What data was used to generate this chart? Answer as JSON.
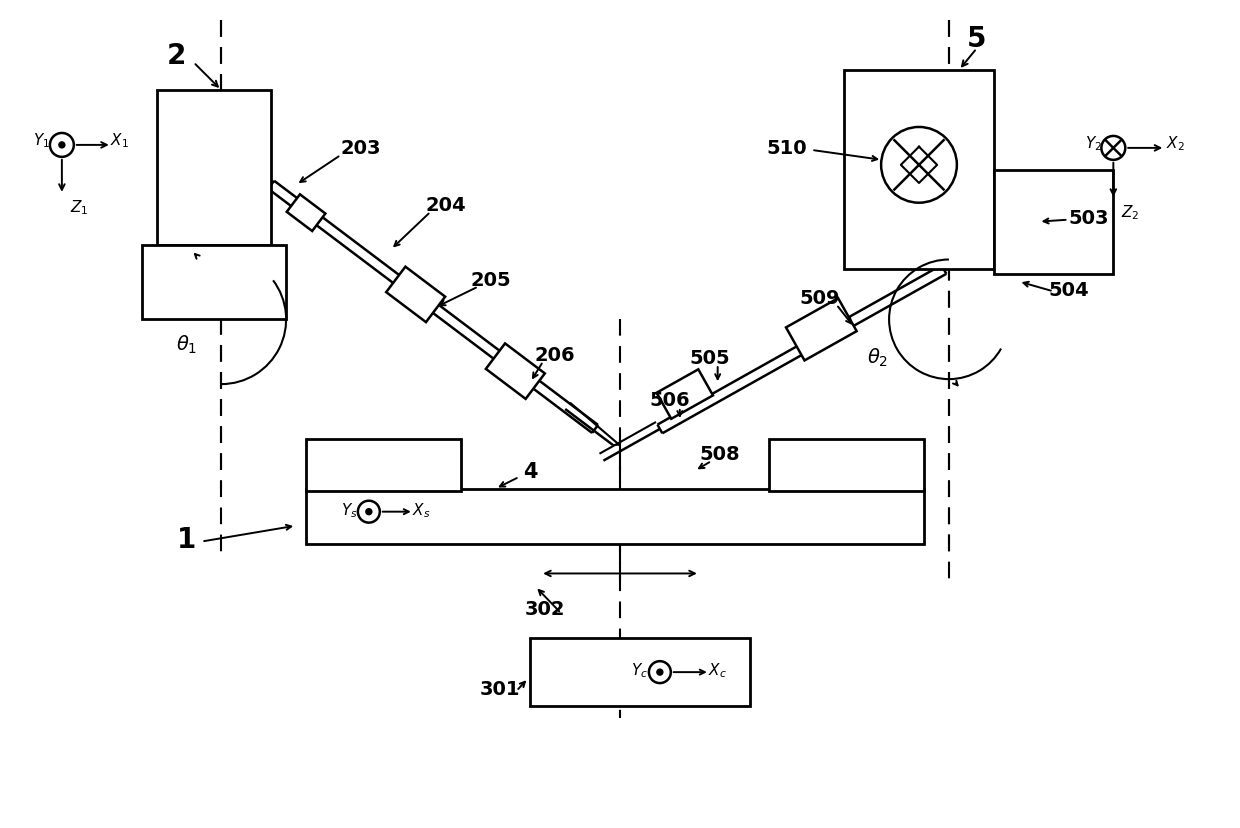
{
  "bg_color": "#ffffff",
  "line_color": "#000000",
  "figsize": [
    12.4,
    8.29
  ],
  "dpi": 100
}
